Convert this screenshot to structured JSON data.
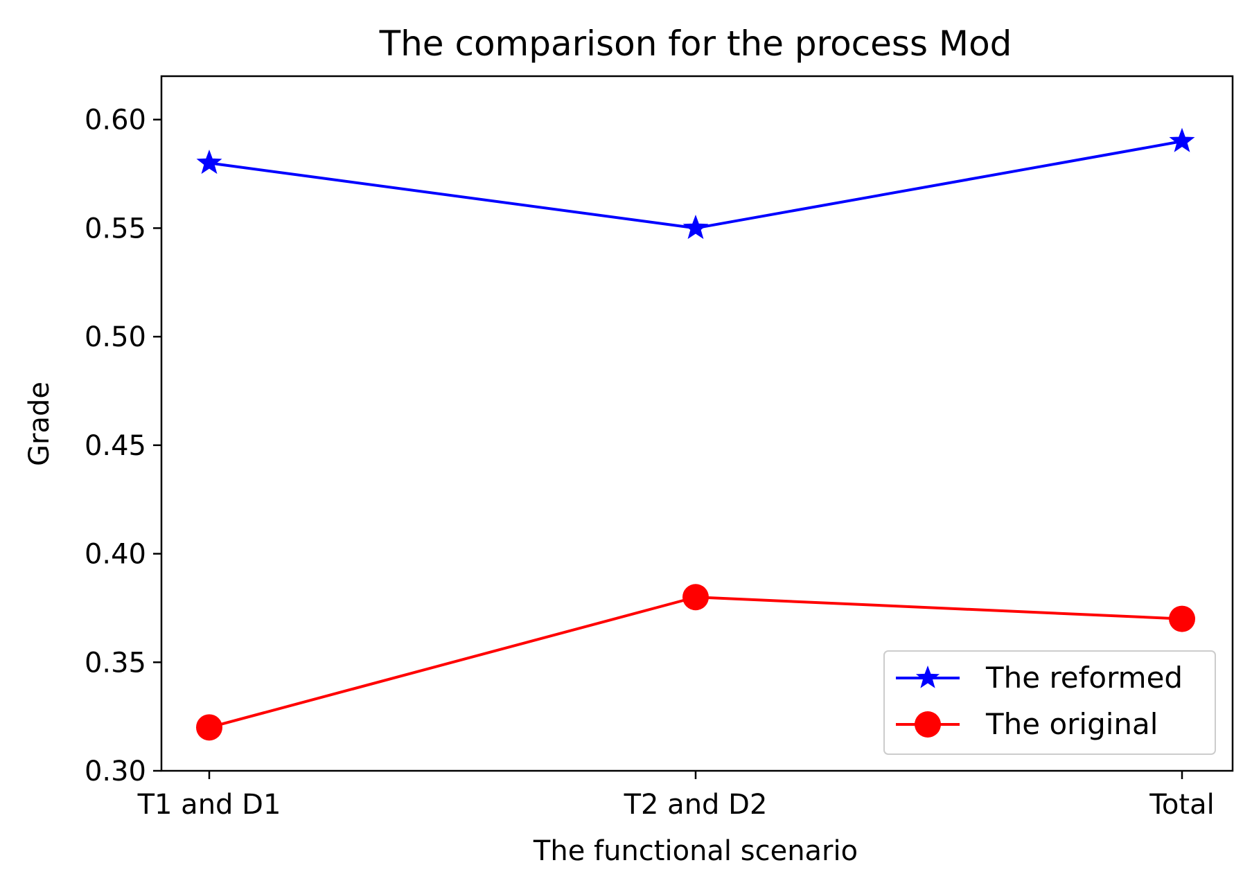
{
  "chart_data": {
    "type": "line",
    "title": "The comparison for the process Mod",
    "xlabel": "The functional scenario",
    "ylabel": "Grade",
    "categories": [
      "T1 and D1",
      "T2 and D2",
      "Total"
    ],
    "ylim": [
      0.3,
      0.62
    ],
    "yticks": [
      0.3,
      0.35,
      0.4,
      0.45,
      0.5,
      0.55,
      0.6
    ],
    "ytick_labels": [
      "0.30",
      "0.35",
      "0.40",
      "0.45",
      "0.50",
      "0.55",
      "0.60"
    ],
    "grid": false,
    "legend_position": "lower-right",
    "series": [
      {
        "name": "The reformed",
        "color": "#0000ff",
        "marker": "star",
        "values": [
          0.58,
          0.55,
          0.59
        ]
      },
      {
        "name": "The original",
        "color": "#ff0000",
        "marker": "circle",
        "values": [
          0.32,
          0.38,
          0.37
        ]
      }
    ]
  }
}
